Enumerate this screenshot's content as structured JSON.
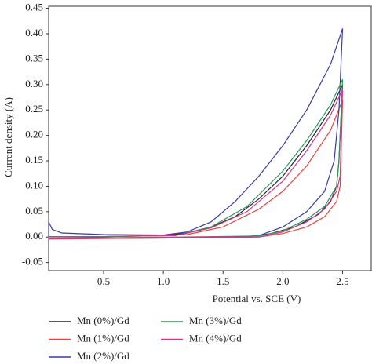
{
  "chart_data": {
    "type": "line",
    "xlabel": "Potential vs. SCE (V)",
    "ylabel": "Current density (A)",
    "xlim": [
      0.04,
      2.74
    ],
    "ylim": [
      -0.066,
      0.454
    ],
    "xticks": [
      0.5,
      {
        "value": 1.0,
        "label": "1.0"
      },
      1.5,
      {
        "value": 2.0,
        "label": "2.0"
      },
      2.5
    ],
    "yticks": [
      -0.05,
      {
        "value": 0.0,
        "label": "0.00"
      },
      0.05,
      {
        "value": 0.1,
        "label": "0.10"
      },
      0.15,
      {
        "value": 0.2,
        "label": "0.20"
      },
      0.25,
      {
        "value": 0.3,
        "label": "0.30"
      },
      0.35,
      {
        "value": 0.4,
        "label": "0.40"
      },
      0.45
    ],
    "series": [
      {
        "name": "Mn (0%)/Gd",
        "color": "#222222",
        "x": [
          0.04,
          0.5,
          1.0,
          1.2,
          1.4,
          1.6,
          1.8,
          2.0,
          2.2,
          2.4,
          2.5,
          2.47,
          2.45,
          2.4,
          2.3,
          2.1,
          1.9,
          1.7,
          1.0,
          0.04
        ],
        "values": [
          0.001,
          0.001,
          0.003,
          0.008,
          0.02,
          0.04,
          0.075,
          0.12,
          0.18,
          0.25,
          0.3,
          0.15,
          0.1,
          0.07,
          0.045,
          0.02,
          0.007,
          0.0,
          -0.002,
          -0.003
        ]
      },
      {
        "name": "Mn (1%)/Gd",
        "color": "#e8433a",
        "x": [
          0.04,
          0.5,
          1.2,
          1.5,
          1.8,
          2.0,
          2.2,
          2.4,
          2.5,
          2.48,
          2.45,
          2.35,
          2.2,
          2.0,
          1.8,
          0.04
        ],
        "values": [
          0.001,
          0.001,
          0.005,
          0.02,
          0.055,
          0.09,
          0.14,
          0.21,
          0.27,
          0.1,
          0.07,
          0.04,
          0.02,
          0.007,
          0.0,
          -0.004
        ]
      },
      {
        "name": "Mn (2%)/Gd",
        "color": "#3a3aa8",
        "x": [
          0.04,
          0.07,
          0.15,
          0.5,
          1.0,
          1.2,
          1.4,
          1.6,
          1.8,
          2.0,
          2.2,
          2.4,
          2.5,
          2.47,
          2.43,
          2.35,
          2.2,
          2.0,
          1.8,
          1.6,
          0.04
        ],
        "values": [
          0.03,
          0.015,
          0.008,
          0.005,
          0.004,
          0.01,
          0.03,
          0.07,
          0.12,
          0.18,
          0.25,
          0.34,
          0.41,
          0.25,
          0.15,
          0.09,
          0.05,
          0.02,
          0.003,
          0.0,
          -0.002
        ]
      },
      {
        "name": "Mn (3%)/Gd",
        "color": "#2a9a5a",
        "x": [
          0.04,
          0.5,
          1.1,
          1.4,
          1.7,
          2.0,
          2.2,
          2.4,
          2.5,
          2.47,
          2.45,
          2.35,
          2.2,
          2.0,
          1.8,
          0.04
        ],
        "values": [
          0.001,
          0.001,
          0.003,
          0.02,
          0.06,
          0.13,
          0.19,
          0.26,
          0.31,
          0.15,
          0.1,
          0.06,
          0.035,
          0.012,
          0.002,
          -0.003
        ]
      },
      {
        "name": "Mn (4%)/Gd",
        "color": "#d6338a",
        "x": [
          0.04,
          0.5,
          1.1,
          1.4,
          1.7,
          2.0,
          2.2,
          2.4,
          2.5,
          2.48,
          2.45,
          2.35,
          2.2,
          2.0,
          1.8,
          0.04
        ],
        "values": [
          0.001,
          0.001,
          0.003,
          0.018,
          0.05,
          0.11,
          0.17,
          0.24,
          0.29,
          0.12,
          0.09,
          0.055,
          0.03,
          0.01,
          0.0,
          -0.003
        ]
      }
    ]
  }
}
